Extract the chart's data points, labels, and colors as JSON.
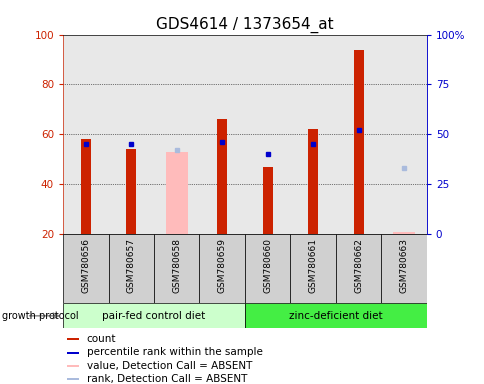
{
  "title": "GDS4614 / 1373654_at",
  "samples": [
    "GSM780656",
    "GSM780657",
    "GSM780658",
    "GSM780659",
    "GSM780660",
    "GSM780661",
    "GSM780662",
    "GSM780663"
  ],
  "count_values": [
    58,
    54,
    null,
    66,
    47,
    62,
    94,
    null
  ],
  "count_absent_values": [
    null,
    null,
    53,
    null,
    null,
    null,
    null,
    21
  ],
  "percentile_values": [
    45,
    45,
    null,
    46,
    40,
    45,
    52,
    null
  ],
  "percentile_absent_values": [
    null,
    null,
    42,
    null,
    null,
    null,
    null,
    33
  ],
  "ylim_left": [
    20,
    100
  ],
  "ylim_right": [
    0,
    100
  ],
  "yticks_left": [
    20,
    40,
    60,
    80,
    100
  ],
  "ytick_labels_right": [
    "0",
    "25",
    "50",
    "75",
    "100%"
  ],
  "group1_label": "pair-fed control diet",
  "group2_label": "zinc-deficient diet",
  "group1_indices": [
    0,
    1,
    2,
    3
  ],
  "group2_indices": [
    4,
    5,
    6,
    7
  ],
  "protocol_label": "growth protocol",
  "legend_items": [
    {
      "label": "count",
      "color": "#cc2200"
    },
    {
      "label": "percentile rank within the sample",
      "color": "#0000cc"
    },
    {
      "label": "value, Detection Call = ABSENT",
      "color": "#ffbbbb"
    },
    {
      "label": "rank, Detection Call = ABSENT",
      "color": "#aabbdd"
    }
  ],
  "count_color": "#cc2200",
  "percentile_color": "#0000cc",
  "count_absent_color": "#ffbbbb",
  "percentile_absent_color": "#aabbdd",
  "plot_bg_color": "#e8e8e8",
  "sample_box_color": "#d0d0d0",
  "group1_bg": "#ccffcc",
  "group2_bg": "#44ee44",
  "title_fontsize": 11,
  "axis_color_left": "#cc2200",
  "axis_color_right": "#0000cc"
}
